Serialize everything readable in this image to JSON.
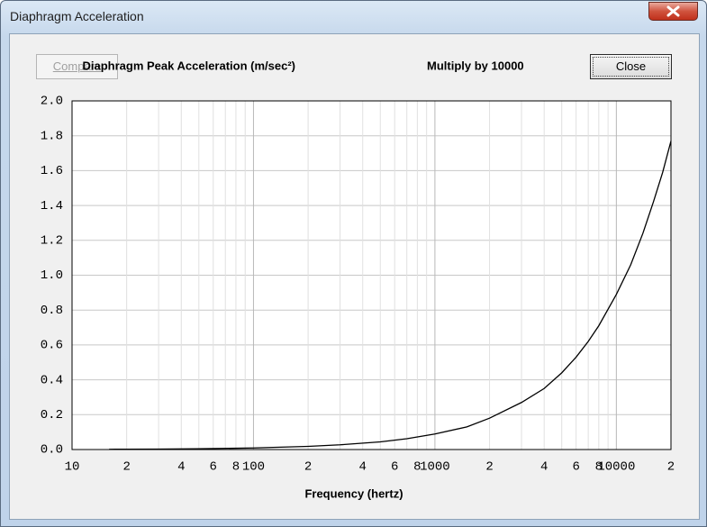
{
  "window": {
    "title": "Diaphragm Acceleration",
    "buttons": {
      "compare": "Compare",
      "close": "Close"
    }
  },
  "chart_data": {
    "type": "line",
    "title": "Diaphragm Peak Acceleration (m/sec²)",
    "note": "Multiply by 10000",
    "xlabel": "Frequency (hertz)",
    "xscale": "log",
    "grid": true,
    "color": "#000000",
    "xlim": [
      10,
      20000
    ],
    "ylim": [
      0,
      2
    ],
    "xticks": [
      10,
      {
        "value": 20,
        "label": "2"
      },
      {
        "value": 40,
        "label": "4"
      },
      {
        "value": 60,
        "label": "6"
      },
      {
        "value": 80,
        "label": "8"
      },
      100,
      {
        "value": 200,
        "label": "2"
      },
      {
        "value": 400,
        "label": "4"
      },
      {
        "value": 600,
        "label": "6"
      },
      {
        "value": 800,
        "label": "8"
      },
      1000,
      {
        "value": 2000,
        "label": "2"
      },
      {
        "value": 4000,
        "label": "4"
      },
      {
        "value": 6000,
        "label": "6"
      },
      {
        "value": 8000,
        "label": "8"
      },
      10000,
      {
        "value": 20000,
        "label": "2"
      }
    ],
    "x_minor_gridlines": [
      30,
      50,
      70,
      90,
      300,
      500,
      700,
      900,
      3000,
      5000,
      7000,
      9000
    ],
    "yticks": [
      {
        "value": 0,
        "label": "0.0"
      },
      {
        "value": 0.2,
        "label": "0.2"
      },
      {
        "value": 0.4,
        "label": "0.4"
      },
      {
        "value": 0.6,
        "label": "0.6"
      },
      {
        "value": 0.8,
        "label": "0.8"
      },
      {
        "value": 1,
        "label": "1.0"
      },
      {
        "value": 1.2,
        "label": "1.2"
      },
      {
        "value": 1.4,
        "label": "1.4"
      },
      {
        "value": 1.6,
        "label": "1.6"
      },
      {
        "value": 1.8,
        "label": "1.8"
      },
      {
        "value": 2,
        "label": "2.0"
      }
    ],
    "x": [
      16,
      20,
      30,
      50,
      100,
      200,
      300,
      500,
      700,
      1000,
      1500,
      2000,
      3000,
      4000,
      5000,
      6000,
      7000,
      8000,
      10000,
      12000,
      14000,
      16000,
      18000,
      20000
    ],
    "values": [
      0.0014,
      0.0018,
      0.0027,
      0.0044,
      0.0089,
      0.018,
      0.027,
      0.044,
      0.062,
      0.089,
      0.13,
      0.18,
      0.27,
      0.35,
      0.44,
      0.53,
      0.62,
      0.71,
      0.89,
      1.06,
      1.24,
      1.42,
      1.59,
      1.77
    ]
  }
}
